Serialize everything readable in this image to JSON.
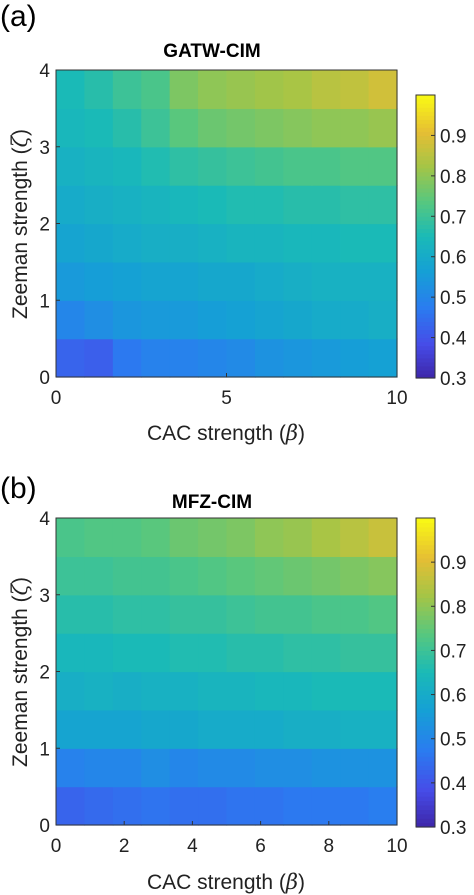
{
  "chart_data": [
    {
      "type": "heatmap",
      "panel_label": "(a)",
      "title": "GATW-CIM",
      "xlabel_prefix": "CAC strength (",
      "xlabel_symbol": "β",
      "xlabel_suffix": ")",
      "ylabel_prefix": "Zeeman strength (",
      "ylabel_symbol": "ζ",
      "ylabel_suffix": ")",
      "xlim": [
        0,
        10
      ],
      "ylim": [
        0,
        4
      ],
      "xticks": [
        0,
        5,
        10
      ],
      "yticks": [
        0,
        1,
        2,
        3,
        4
      ],
      "clim": [
        0.3,
        1.0
      ],
      "colorbar_ticks": [
        0.3,
        0.4,
        0.5,
        0.6,
        0.7,
        0.8,
        0.9
      ],
      "colormap": "parula",
      "grid": false,
      "z_rows_bottom_to_top": [
        [
          0.43,
          0.42,
          0.47,
          0.49,
          0.49,
          0.5,
          0.51,
          0.53,
          0.54,
          0.55,
          0.56,
          0.57
        ],
        [
          0.5,
          0.52,
          0.54,
          0.55,
          0.55,
          0.56,
          0.57,
          0.58,
          0.59,
          0.6,
          0.6,
          0.61
        ],
        [
          0.55,
          0.56,
          0.57,
          0.58,
          0.58,
          0.59,
          0.59,
          0.6,
          0.61,
          0.62,
          0.62,
          0.62
        ],
        [
          0.58,
          0.59,
          0.6,
          0.61,
          0.61,
          0.62,
          0.63,
          0.63,
          0.64,
          0.64,
          0.65,
          0.65
        ],
        [
          0.6,
          0.61,
          0.62,
          0.63,
          0.64,
          0.65,
          0.66,
          0.66,
          0.67,
          0.67,
          0.68,
          0.68
        ],
        [
          0.62,
          0.63,
          0.64,
          0.66,
          0.68,
          0.69,
          0.7,
          0.71,
          0.72,
          0.72,
          0.73,
          0.73
        ],
        [
          0.64,
          0.65,
          0.67,
          0.7,
          0.74,
          0.76,
          0.77,
          0.78,
          0.79,
          0.8,
          0.8,
          0.81
        ],
        [
          0.65,
          0.67,
          0.7,
          0.72,
          0.78,
          0.8,
          0.81,
          0.82,
          0.83,
          0.85,
          0.86,
          0.88
        ]
      ]
    },
    {
      "type": "heatmap",
      "panel_label": "(b)",
      "title": "MFZ-CIM",
      "xlabel_prefix": "CAC strength (",
      "xlabel_symbol": "β",
      "xlabel_suffix": ")",
      "ylabel_prefix": "Zeeman strength (",
      "ylabel_symbol": "ζ",
      "ylabel_suffix": ")",
      "xlim": [
        0,
        10
      ],
      "ylim": [
        0,
        4
      ],
      "xticks": [
        0,
        2,
        4,
        6,
        8,
        10
      ],
      "yticks": [
        0,
        1,
        2,
        3,
        4
      ],
      "clim": [
        0.3,
        1.0
      ],
      "colorbar_ticks": [
        0.3,
        0.4,
        0.5,
        0.6,
        0.7,
        0.8,
        0.9
      ],
      "colormap": "parula",
      "grid": false,
      "z_rows_bottom_to_top": [
        [
          0.43,
          0.44,
          0.45,
          0.46,
          0.45,
          0.45,
          0.46,
          0.46,
          0.47,
          0.47,
          0.47,
          0.48
        ],
        [
          0.49,
          0.5,
          0.5,
          0.52,
          0.5,
          0.51,
          0.51,
          0.52,
          0.52,
          0.53,
          0.53,
          0.53
        ],
        [
          0.58,
          0.58,
          0.58,
          0.59,
          0.59,
          0.6,
          0.6,
          0.6,
          0.61,
          0.61,
          0.62,
          0.62
        ],
        [
          0.61,
          0.62,
          0.61,
          0.62,
          0.62,
          0.63,
          0.63,
          0.64,
          0.64,
          0.65,
          0.65,
          0.65
        ],
        [
          0.64,
          0.64,
          0.65,
          0.65,
          0.66,
          0.66,
          0.67,
          0.67,
          0.68,
          0.68,
          0.69,
          0.69
        ],
        [
          0.67,
          0.67,
          0.68,
          0.68,
          0.69,
          0.69,
          0.7,
          0.71,
          0.71,
          0.72,
          0.72,
          0.73
        ],
        [
          0.7,
          0.7,
          0.71,
          0.71,
          0.72,
          0.73,
          0.74,
          0.75,
          0.76,
          0.77,
          0.78,
          0.79
        ],
        [
          0.72,
          0.73,
          0.73,
          0.74,
          0.76,
          0.77,
          0.78,
          0.8,
          0.81,
          0.83,
          0.85,
          0.87
        ]
      ]
    }
  ]
}
